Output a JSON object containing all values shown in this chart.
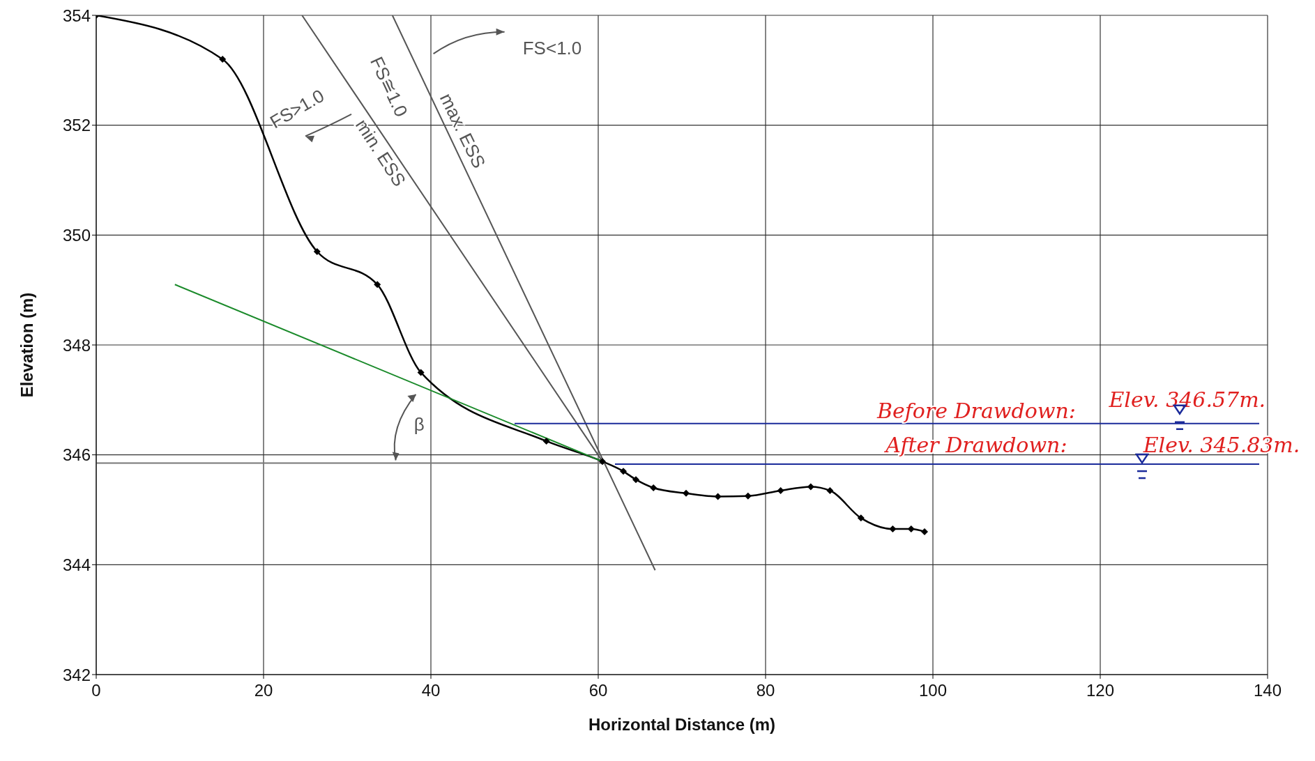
{
  "chart_data": {
    "type": "line",
    "xlabel": "Horizontal Distance (m)",
    "ylabel": "Elevation (m)",
    "xlim": [
      0,
      140
    ],
    "xticks": [
      0,
      20,
      40,
      60,
      80,
      100,
      120,
      140
    ],
    "ylim": [
      342,
      354
    ],
    "yticks": [
      342,
      344,
      346,
      348,
      350,
      352,
      354
    ],
    "grid": true,
    "series": [
      {
        "color": "#000000",
        "marker": "diamond",
        "x": [
          0,
          15.1,
          26.4,
          33.6,
          38.8,
          53.8,
          60.5,
          63,
          64.5,
          66.6,
          70.5,
          74.3,
          77.9,
          81.8,
          85.4,
          87.7,
          91.4,
          95.2,
          97.4,
          99
        ],
        "values": [
          354,
          353.2,
          349.7,
          349.1,
          347.5,
          346.25,
          345.88,
          345.7,
          345.55,
          345.4,
          345.3,
          345.24,
          345.25,
          345.35,
          345.42,
          345.35,
          344.85,
          344.65,
          344.65,
          344.6
        ]
      },
      {
        "color": "#1a8a2a",
        "x": [
          9.4,
          60.5
        ],
        "values": [
          349.1,
          345.88
        ]
      },
      {
        "color": "#555555",
        "x": [
          24.6,
          60.5
        ],
        "values": [
          354,
          345.88
        ]
      },
      {
        "color": "#555555",
        "x": [
          35.4,
          66.8
        ],
        "values": [
          354,
          343.9
        ]
      },
      {
        "color": "#777777",
        "x": [
          0,
          60.5
        ],
        "values": [
          345.85,
          345.85
        ]
      },
      {
        "color": "#1a2a9a",
        "x": [
          50,
          139
        ],
        "values": [
          346.57,
          346.57
        ]
      },
      {
        "color": "#1a2a9a",
        "x": [
          62,
          139
        ],
        "values": [
          345.83,
          345.83
        ]
      }
    ],
    "annotations": [
      "FS<1.0",
      "FS>1.0",
      "FS≅1.0",
      "min. ESS",
      "max. ESS",
      {
        "text": "β",
        "x": 38.2,
        "y": 347.29
      },
      "Before Drawdown:",
      "Elev. 346.57m.",
      "After Drawdown:",
      "Elev. 345.83m."
    ]
  }
}
